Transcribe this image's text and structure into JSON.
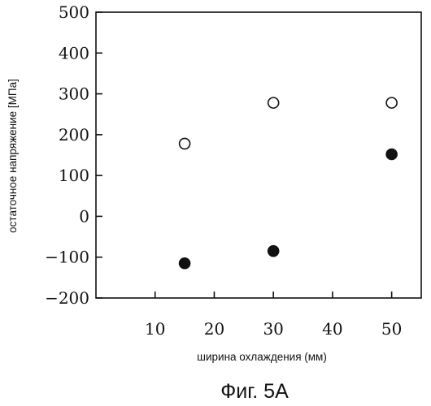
{
  "chart_data": {
    "type": "scatter",
    "xlabel": "ширина охлаждения (мм)",
    "ylabel": "остаточное напряжение [МПа]",
    "caption": "Фиг. 5А",
    "xlim": [
      0,
      55
    ],
    "ylim": [
      -200,
      500
    ],
    "x_ticks": [
      "10",
      "20",
      "30",
      "40",
      "50"
    ],
    "y_ticks": [
      "500",
      "400",
      "300",
      "200",
      "100",
      "0",
      "−100",
      "−200"
    ],
    "grid": false,
    "series": [
      {
        "marker": "open-circle",
        "x": [
          15,
          30,
          50
        ],
        "y": [
          178,
          278,
          278
        ]
      },
      {
        "marker": "filled-circle",
        "x": [
          15,
          30,
          50
        ],
        "y": [
          -115,
          -85,
          152
        ]
      }
    ]
  }
}
